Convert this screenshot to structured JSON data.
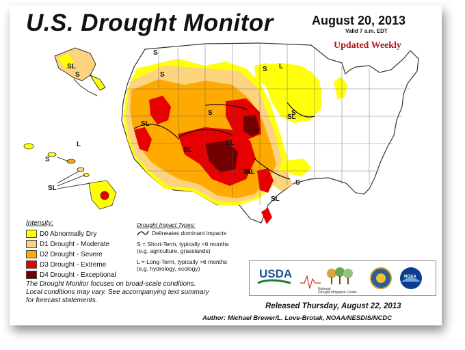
{
  "title": "U.S. Drought Monitor",
  "date": "August 20, 2013",
  "valid": "Valid 7 a.m. EDT",
  "update_note": "Updated Weekly",
  "legend": {
    "title": "Intensity:",
    "items": [
      {
        "label": "D0 Abnormally Dry",
        "color": "#ffff00"
      },
      {
        "label": "D1 Drought - Moderate",
        "color": "#fcd37f"
      },
      {
        "label": "D2 Drought - Severe",
        "color": "#ffaa00"
      },
      {
        "label": "D3 Drought - Extreme",
        "color": "#e60000"
      },
      {
        "label": "D4 Drought - Exceptional",
        "color": "#730000"
      }
    ]
  },
  "impact": {
    "title": "Drought Impact Types:",
    "delineates": "Delineates dominant impacts",
    "s_line1": "S = Short-Term, typically <6 months",
    "s_line2": "(e.g. agriculture, grasslands)",
    "l_line1": "L = Long-Term, typically >6 months",
    "l_line2": "(e.g. hydrology, ecology)"
  },
  "note_lines": [
    "The Drought Monitor focuses on broad-scale conditions.",
    "Local conditions may vary. See accompanying text summary",
    "for forecast statements."
  ],
  "map_labels": [
    "SL",
    "S",
    "S",
    "S",
    "SL",
    "S",
    "SL",
    "SL",
    "S",
    "SL",
    "S",
    "SL",
    "SL",
    "S",
    "L",
    "S",
    "SL",
    "S",
    "L",
    "SL"
  ],
  "logos": {
    "usda": "USDA",
    "ndmc_line1": "National",
    "ndmc_line2": "Drought Mitigation Center",
    "noaa": "NOAA"
  },
  "released": "Released Thursday, August 22, 2013",
  "author": "Author: Michael Brewer/L. Love-Brotak, NOAA/NESDIS/NCDC"
}
